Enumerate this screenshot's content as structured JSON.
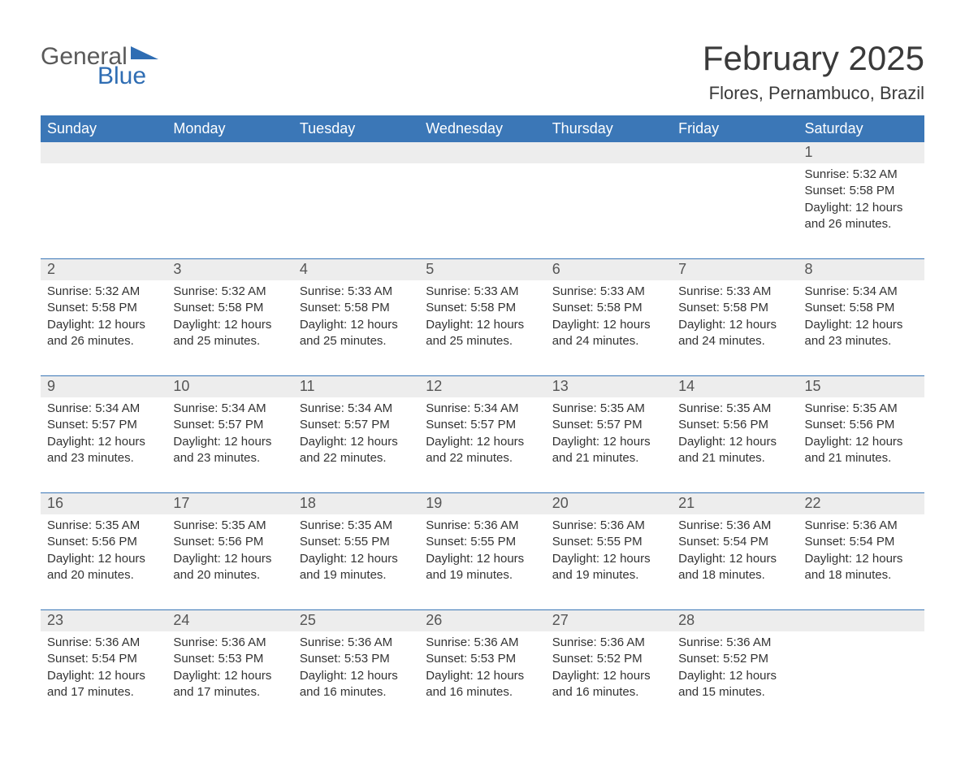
{
  "logo": {
    "line1": "General",
    "line2": "Blue"
  },
  "header": {
    "month_title": "February 2025",
    "location": "Flores, Pernambuco, Brazil"
  },
  "colors": {
    "header_bg": "#3b77b7",
    "header_text": "#ffffff",
    "daynum_bg": "#ededed",
    "daynum_text": "#555555",
    "body_text": "#333333",
    "rule": "#3b77b7",
    "logo_general": "#5a5a5a",
    "logo_blue": "#2f6db3",
    "logo_triangle": "#2f6db3"
  },
  "typography": {
    "month_title_fontsize": 42,
    "location_fontsize": 22,
    "weekday_fontsize": 18,
    "daynum_fontsize": 18,
    "body_fontsize": 15
  },
  "calendar": {
    "type": "table",
    "weekdays": [
      "Sunday",
      "Monday",
      "Tuesday",
      "Wednesday",
      "Thursday",
      "Friday",
      "Saturday"
    ],
    "weeks": [
      [
        null,
        null,
        null,
        null,
        null,
        null,
        {
          "day": "1",
          "sunrise": "Sunrise: 5:32 AM",
          "sunset": "Sunset: 5:58 PM",
          "day1": "Daylight: 12 hours",
          "day2": "and 26 minutes."
        }
      ],
      [
        {
          "day": "2",
          "sunrise": "Sunrise: 5:32 AM",
          "sunset": "Sunset: 5:58 PM",
          "day1": "Daylight: 12 hours",
          "day2": "and 26 minutes."
        },
        {
          "day": "3",
          "sunrise": "Sunrise: 5:32 AM",
          "sunset": "Sunset: 5:58 PM",
          "day1": "Daylight: 12 hours",
          "day2": "and 25 minutes."
        },
        {
          "day": "4",
          "sunrise": "Sunrise: 5:33 AM",
          "sunset": "Sunset: 5:58 PM",
          "day1": "Daylight: 12 hours",
          "day2": "and 25 minutes."
        },
        {
          "day": "5",
          "sunrise": "Sunrise: 5:33 AM",
          "sunset": "Sunset: 5:58 PM",
          "day1": "Daylight: 12 hours",
          "day2": "and 25 minutes."
        },
        {
          "day": "6",
          "sunrise": "Sunrise: 5:33 AM",
          "sunset": "Sunset: 5:58 PM",
          "day1": "Daylight: 12 hours",
          "day2": "and 24 minutes."
        },
        {
          "day": "7",
          "sunrise": "Sunrise: 5:33 AM",
          "sunset": "Sunset: 5:58 PM",
          "day1": "Daylight: 12 hours",
          "day2": "and 24 minutes."
        },
        {
          "day": "8",
          "sunrise": "Sunrise: 5:34 AM",
          "sunset": "Sunset: 5:58 PM",
          "day1": "Daylight: 12 hours",
          "day2": "and 23 minutes."
        }
      ],
      [
        {
          "day": "9",
          "sunrise": "Sunrise: 5:34 AM",
          "sunset": "Sunset: 5:57 PM",
          "day1": "Daylight: 12 hours",
          "day2": "and 23 minutes."
        },
        {
          "day": "10",
          "sunrise": "Sunrise: 5:34 AM",
          "sunset": "Sunset: 5:57 PM",
          "day1": "Daylight: 12 hours",
          "day2": "and 23 minutes."
        },
        {
          "day": "11",
          "sunrise": "Sunrise: 5:34 AM",
          "sunset": "Sunset: 5:57 PM",
          "day1": "Daylight: 12 hours",
          "day2": "and 22 minutes."
        },
        {
          "day": "12",
          "sunrise": "Sunrise: 5:34 AM",
          "sunset": "Sunset: 5:57 PM",
          "day1": "Daylight: 12 hours",
          "day2": "and 22 minutes."
        },
        {
          "day": "13",
          "sunrise": "Sunrise: 5:35 AM",
          "sunset": "Sunset: 5:57 PM",
          "day1": "Daylight: 12 hours",
          "day2": "and 21 minutes."
        },
        {
          "day": "14",
          "sunrise": "Sunrise: 5:35 AM",
          "sunset": "Sunset: 5:56 PM",
          "day1": "Daylight: 12 hours",
          "day2": "and 21 minutes."
        },
        {
          "day": "15",
          "sunrise": "Sunrise: 5:35 AM",
          "sunset": "Sunset: 5:56 PM",
          "day1": "Daylight: 12 hours",
          "day2": "and 21 minutes."
        }
      ],
      [
        {
          "day": "16",
          "sunrise": "Sunrise: 5:35 AM",
          "sunset": "Sunset: 5:56 PM",
          "day1": "Daylight: 12 hours",
          "day2": "and 20 minutes."
        },
        {
          "day": "17",
          "sunrise": "Sunrise: 5:35 AM",
          "sunset": "Sunset: 5:56 PM",
          "day1": "Daylight: 12 hours",
          "day2": "and 20 minutes."
        },
        {
          "day": "18",
          "sunrise": "Sunrise: 5:35 AM",
          "sunset": "Sunset: 5:55 PM",
          "day1": "Daylight: 12 hours",
          "day2": "and 19 minutes."
        },
        {
          "day": "19",
          "sunrise": "Sunrise: 5:36 AM",
          "sunset": "Sunset: 5:55 PM",
          "day1": "Daylight: 12 hours",
          "day2": "and 19 minutes."
        },
        {
          "day": "20",
          "sunrise": "Sunrise: 5:36 AM",
          "sunset": "Sunset: 5:55 PM",
          "day1": "Daylight: 12 hours",
          "day2": "and 19 minutes."
        },
        {
          "day": "21",
          "sunrise": "Sunrise: 5:36 AM",
          "sunset": "Sunset: 5:54 PM",
          "day1": "Daylight: 12 hours",
          "day2": "and 18 minutes."
        },
        {
          "day": "22",
          "sunrise": "Sunrise: 5:36 AM",
          "sunset": "Sunset: 5:54 PM",
          "day1": "Daylight: 12 hours",
          "day2": "and 18 minutes."
        }
      ],
      [
        {
          "day": "23",
          "sunrise": "Sunrise: 5:36 AM",
          "sunset": "Sunset: 5:54 PM",
          "day1": "Daylight: 12 hours",
          "day2": "and 17 minutes."
        },
        {
          "day": "24",
          "sunrise": "Sunrise: 5:36 AM",
          "sunset": "Sunset: 5:53 PM",
          "day1": "Daylight: 12 hours",
          "day2": "and 17 minutes."
        },
        {
          "day": "25",
          "sunrise": "Sunrise: 5:36 AM",
          "sunset": "Sunset: 5:53 PM",
          "day1": "Daylight: 12 hours",
          "day2": "and 16 minutes."
        },
        {
          "day": "26",
          "sunrise": "Sunrise: 5:36 AM",
          "sunset": "Sunset: 5:53 PM",
          "day1": "Daylight: 12 hours",
          "day2": "and 16 minutes."
        },
        {
          "day": "27",
          "sunrise": "Sunrise: 5:36 AM",
          "sunset": "Sunset: 5:52 PM",
          "day1": "Daylight: 12 hours",
          "day2": "and 16 minutes."
        },
        {
          "day": "28",
          "sunrise": "Sunrise: 5:36 AM",
          "sunset": "Sunset: 5:52 PM",
          "day1": "Daylight: 12 hours",
          "day2": "and 15 minutes."
        },
        null
      ]
    ]
  }
}
